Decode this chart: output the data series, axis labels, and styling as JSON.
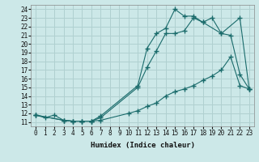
{
  "xlabel": "Humidex (Indice chaleur)",
  "bg_color": "#cce8e8",
  "line_color": "#1a6b6b",
  "grid_color": "#b0d0d0",
  "xlim": [
    -0.5,
    23.5
  ],
  "ylim": [
    10.5,
    24.5
  ],
  "xticks": [
    0,
    1,
    2,
    3,
    4,
    5,
    6,
    7,
    8,
    9,
    10,
    11,
    12,
    13,
    14,
    15,
    16,
    17,
    18,
    19,
    20,
    21,
    22,
    23
  ],
  "yticks": [
    11,
    12,
    13,
    14,
    15,
    16,
    17,
    18,
    19,
    20,
    21,
    22,
    23,
    24
  ],
  "line1_x": [
    0,
    1,
    2,
    3,
    4,
    5,
    6,
    7,
    10,
    11,
    12,
    13,
    14,
    15,
    16,
    17,
    18,
    19,
    20,
    21,
    22,
    23
  ],
  "line1_y": [
    11.8,
    11.5,
    11.8,
    11.2,
    11.1,
    11.1,
    11.1,
    11.2,
    12.0,
    12.3,
    12.8,
    13.2,
    14.0,
    14.5,
    14.8,
    15.2,
    15.8,
    16.3,
    17.0,
    18.5,
    15.2,
    14.8
  ],
  "line2_x": [
    0,
    3,
    4,
    5,
    6,
    7,
    11,
    12,
    13,
    14,
    15,
    16,
    17,
    18,
    19,
    20,
    21,
    22,
    23
  ],
  "line2_y": [
    11.8,
    11.2,
    11.1,
    11.1,
    11.1,
    11.5,
    15.0,
    17.3,
    19.2,
    21.2,
    21.2,
    21.5,
    23.0,
    22.5,
    23.0,
    21.2,
    21.0,
    16.5,
    14.8
  ],
  "line3_x": [
    0,
    3,
    4,
    5,
    6,
    7,
    11,
    12,
    13,
    14,
    15,
    16,
    17,
    18,
    20,
    22,
    23
  ],
  "line3_y": [
    11.8,
    11.2,
    11.1,
    11.1,
    11.1,
    11.7,
    15.2,
    19.5,
    21.2,
    21.8,
    24.0,
    23.2,
    23.2,
    22.5,
    21.2,
    23.0,
    14.8
  ]
}
